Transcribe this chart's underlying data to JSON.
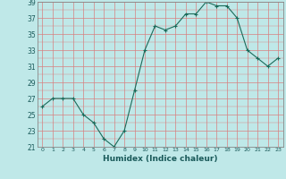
{
  "x": [
    0,
    1,
    2,
    3,
    4,
    5,
    6,
    7,
    8,
    9,
    10,
    11,
    12,
    13,
    14,
    15,
    16,
    17,
    18,
    19,
    20,
    21,
    22,
    23
  ],
  "y": [
    26,
    27,
    27,
    27,
    25,
    24,
    22,
    21,
    23,
    28,
    33,
    36,
    35.5,
    36,
    37.5,
    37.5,
    39,
    38.5,
    38.5,
    37,
    33,
    32,
    31,
    32
  ],
  "line_color": "#1a6b5a",
  "marker_color": "#1a6b5a",
  "bg_color": "#bfe8e8",
  "grid_color": "#d88080",
  "xlabel": "Humidex (Indice chaleur)",
  "ylim": [
    21,
    39
  ],
  "yticks": [
    21,
    23,
    25,
    27,
    29,
    31,
    33,
    35,
    37,
    39
  ],
  "xlim": [
    -0.5,
    23.5
  ],
  "xticks": [
    0,
    1,
    2,
    3,
    4,
    5,
    6,
    7,
    8,
    9,
    10,
    11,
    12,
    13,
    14,
    15,
    16,
    17,
    18,
    19,
    20,
    21,
    22,
    23
  ],
  "tick_color": "#1a5a5a",
  "spine_color": "#888888"
}
